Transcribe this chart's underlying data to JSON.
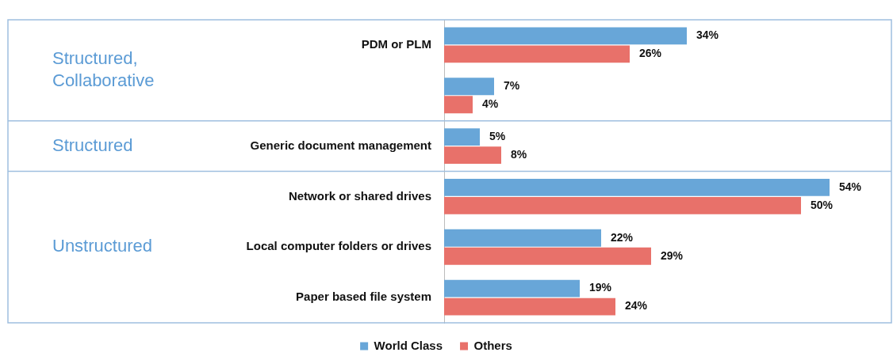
{
  "chart_data": {
    "type": "bar",
    "orientation": "horizontal",
    "categories": [
      "PDM or PLM",
      null,
      "Generic document management",
      "Network or shared drives",
      "Local computer folders or drives",
      "Paper based file system"
    ],
    "series": [
      {
        "name": "World Class",
        "color": "#68a6d8",
        "values": [
          34,
          7,
          5,
          54,
          22,
          19
        ],
        "value_labels": [
          "34%",
          "7%",
          "5%",
          "54%",
          "22%",
          "19%"
        ]
      },
      {
        "name": "Others",
        "color": "#e8716a",
        "values": [
          26,
          4,
          8,
          50,
          29,
          24
        ],
        "value_labels": [
          "26%",
          "4%",
          "8%",
          "50%",
          "29%",
          "24%"
        ]
      }
    ],
    "tick_labels": "y",
    "grid": false,
    "legend": "bottom",
    "annotations": [
      "Structured, Collaborative",
      "Structured",
      "Unstructured"
    ]
  }
}
